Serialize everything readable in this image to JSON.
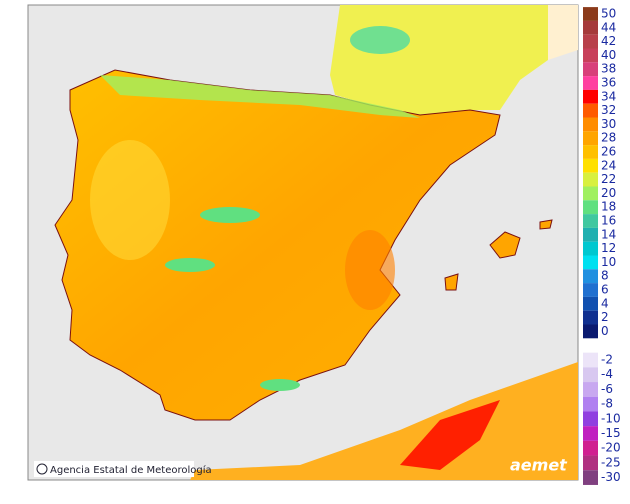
{
  "legend": {
    "positive": [
      {
        "label": 50,
        "color": "#8b3a1a"
      },
      {
        "label": 44,
        "color": "#a53a3a"
      },
      {
        "label": 42,
        "color": "#b8404a"
      },
      {
        "label": 40,
        "color": "#c8405a"
      },
      {
        "label": 38,
        "color": "#d8407a"
      },
      {
        "label": 36,
        "color": "#ff40a0"
      },
      {
        "label": 34,
        "color": "#ff0000"
      },
      {
        "label": 32,
        "color": "#ff5a00"
      },
      {
        "label": 30,
        "color": "#ff8c00"
      },
      {
        "label": 28,
        "color": "#ffa500"
      },
      {
        "label": 26,
        "color": "#ffc000"
      },
      {
        "label": 24,
        "color": "#ffe000"
      },
      {
        "label": 22,
        "color": "#d8f040"
      },
      {
        "label": 20,
        "color": "#a0f060"
      },
      {
        "label": 18,
        "color": "#60e080"
      },
      {
        "label": 16,
        "color": "#40c8a0"
      },
      {
        "label": 14,
        "color": "#20b0b0"
      },
      {
        "label": 12,
        "color": "#00c8d0"
      },
      {
        "label": 10,
        "color": "#00e0f0"
      },
      {
        "label": 8,
        "color": "#2090e0"
      },
      {
        "label": 6,
        "color": "#2070d0"
      },
      {
        "label": 4,
        "color": "#1050b0"
      },
      {
        "label": 2,
        "color": "#103090"
      },
      {
        "label": 0,
        "color": "#0a1a70"
      }
    ],
    "negative": [
      {
        "label": -2,
        "color": "#ece4f8"
      },
      {
        "label": -4,
        "color": "#d8c8f0"
      },
      {
        "label": -6,
        "color": "#c8a8f0"
      },
      {
        "label": -8,
        "color": "#b080f0"
      },
      {
        "label": -10,
        "color": "#9040e0"
      },
      {
        "label": -15,
        "color": "#c020c0"
      },
      {
        "label": -20,
        "color": "#d02090"
      },
      {
        "label": -25,
        "color": "#b03080"
      },
      {
        "label": -30,
        "color": "#804080"
      }
    ]
  },
  "attribution": "Agencia Estatal de Meteorología",
  "logo": "aemet"
}
